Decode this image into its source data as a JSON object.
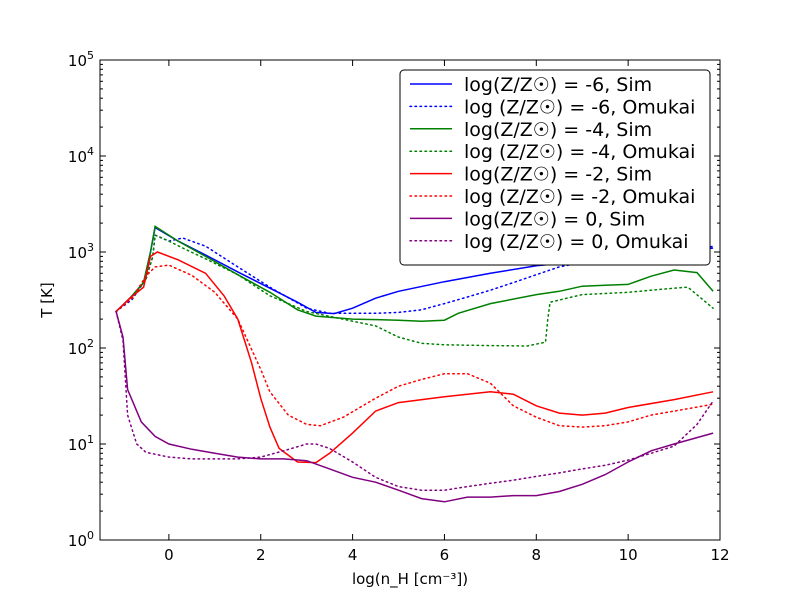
{
  "chart_data": {
    "type": "line",
    "xlabel": "log(n_H [cm⁻³])",
    "ylabel": "T [K]",
    "xlim": [
      -1.5,
      12
    ],
    "ylim_log10": [
      0,
      5
    ],
    "yscale": "log",
    "grid": false,
    "legend_placement": "top-right",
    "x_ticks": [
      0,
      2,
      4,
      6,
      8,
      10,
      12
    ],
    "x_tick_labels": [
      "0",
      "2",
      "4",
      "6",
      "8",
      "10",
      "12"
    ],
    "y_ticks_log10": [
      0,
      1,
      2,
      3,
      4,
      5
    ],
    "y_tick_labels": [
      {
        "base": "10",
        "exp": "0"
      },
      {
        "base": "10",
        "exp": "1"
      },
      {
        "base": "10",
        "exp": "2"
      },
      {
        "base": "10",
        "exp": "3"
      },
      {
        "base": "10",
        "exp": "4"
      },
      {
        "base": "10",
        "exp": "5"
      }
    ],
    "series": [
      {
        "name": "log(Z/Z☉) = -6, Sim",
        "color": "#0000ff",
        "style": "solid",
        "points": [
          [
            -1.15,
            240
          ],
          [
            -0.85,
            330
          ],
          [
            -0.55,
            480
          ],
          [
            -0.4,
            1000
          ],
          [
            -0.3,
            1800
          ],
          [
            0.2,
            1300
          ],
          [
            0.8,
            930
          ],
          [
            1.5,
            620
          ],
          [
            2.2,
            420
          ],
          [
            2.8,
            300
          ],
          [
            3.2,
            235
          ],
          [
            3.6,
            228
          ],
          [
            4.0,
            260
          ],
          [
            4.5,
            330
          ],
          [
            5.0,
            390
          ],
          [
            6.0,
            490
          ],
          [
            7.0,
            600
          ],
          [
            8.0,
            720
          ],
          [
            9.0,
            800
          ],
          [
            10.0,
            870
          ],
          [
            11.0,
            950
          ],
          [
            11.85,
            1100
          ]
        ]
      },
      {
        "name": "log (Z/Z☉) = -6, Omukai",
        "color": "#0000ff",
        "style": "dotted",
        "points": [
          [
            -1.15,
            240
          ],
          [
            -0.8,
            320
          ],
          [
            -0.5,
            520
          ],
          [
            -0.35,
            900
          ],
          [
            -0.3,
            1500
          ],
          [
            0.0,
            1300
          ],
          [
            0.3,
            1400
          ],
          [
            0.8,
            1150
          ],
          [
            1.5,
            700
          ],
          [
            2.2,
            430
          ],
          [
            3.0,
            260
          ],
          [
            3.5,
            230
          ],
          [
            4.0,
            230
          ],
          [
            4.5,
            230
          ],
          [
            5.0,
            235
          ],
          [
            5.5,
            250
          ],
          [
            6.0,
            290
          ],
          [
            6.5,
            340
          ],
          [
            7.0,
            400
          ],
          [
            7.5,
            480
          ],
          [
            8.0,
            580
          ],
          [
            8.5,
            700
          ],
          [
            9.0,
            780
          ],
          [
            9.5,
            810
          ],
          [
            10.0,
            800
          ],
          [
            10.5,
            830
          ],
          [
            11.0,
            930
          ],
          [
            11.5,
            1050
          ],
          [
            11.85,
            1150
          ]
        ]
      },
      {
        "name": "log(Z/Z☉) = -4, Sim",
        "color": "#008000",
        "style": "solid",
        "points": [
          [
            -1.15,
            240
          ],
          [
            -0.85,
            330
          ],
          [
            -0.55,
            480
          ],
          [
            -0.4,
            1000
          ],
          [
            -0.3,
            1850
          ],
          [
            0.2,
            1300
          ],
          [
            0.8,
            900
          ],
          [
            1.5,
            580
          ],
          [
            2.2,
            380
          ],
          [
            2.8,
            250
          ],
          [
            3.2,
            215
          ],
          [
            4.0,
            200
          ],
          [
            5.0,
            195
          ],
          [
            5.5,
            190
          ],
          [
            6.0,
            195
          ],
          [
            6.3,
            230
          ],
          [
            7.0,
            290
          ],
          [
            8.0,
            360
          ],
          [
            8.5,
            390
          ],
          [
            9.0,
            440
          ],
          [
            9.5,
            450
          ],
          [
            10.0,
            460
          ],
          [
            10.5,
            560
          ],
          [
            11.0,
            650
          ],
          [
            11.5,
            610
          ],
          [
            11.85,
            390
          ]
        ]
      },
      {
        "name": "log (Z/Z☉) = -4, Omukai",
        "color": "#008000",
        "style": "dotted",
        "points": [
          [
            -1.15,
            240
          ],
          [
            -0.8,
            330
          ],
          [
            -0.5,
            520
          ],
          [
            -0.35,
            900
          ],
          [
            -0.3,
            1500
          ],
          [
            0.0,
            1300
          ],
          [
            0.3,
            1100
          ],
          [
            0.8,
            850
          ],
          [
            1.5,
            580
          ],
          [
            2.2,
            350
          ],
          [
            3.0,
            240
          ],
          [
            4.0,
            190
          ],
          [
            4.5,
            170
          ],
          [
            5.0,
            130
          ],
          [
            5.5,
            112
          ],
          [
            6.0,
            108
          ],
          [
            7.0,
            106
          ],
          [
            7.8,
            105
          ],
          [
            8.2,
            115
          ],
          [
            8.25,
            200
          ],
          [
            8.3,
            300
          ],
          [
            9.0,
            360
          ],
          [
            10.0,
            380
          ],
          [
            10.5,
            400
          ],
          [
            11.0,
            420
          ],
          [
            11.3,
            430
          ],
          [
            11.85,
            260
          ]
        ]
      },
      {
        "name": "log(Z/Z☉) = -2, Sim",
        "color": "#ff0000",
        "style": "solid",
        "points": [
          [
            -1.15,
            240
          ],
          [
            -0.85,
            330
          ],
          [
            -0.55,
            430
          ],
          [
            -0.4,
            900
          ],
          [
            -0.25,
            1000
          ],
          [
            0.2,
            830
          ],
          [
            0.8,
            600
          ],
          [
            1.2,
            350
          ],
          [
            1.5,
            200
          ],
          [
            1.8,
            70
          ],
          [
            2.0,
            30
          ],
          [
            2.2,
            15
          ],
          [
            2.4,
            9
          ],
          [
            2.8,
            6.5
          ],
          [
            3.2,
            6.4
          ],
          [
            3.5,
            8
          ],
          [
            4.0,
            13
          ],
          [
            4.5,
            22
          ],
          [
            5.0,
            27
          ],
          [
            6.0,
            31
          ],
          [
            7.0,
            35
          ],
          [
            7.5,
            33
          ],
          [
            8.0,
            25
          ],
          [
            8.5,
            21
          ],
          [
            9.0,
            20
          ],
          [
            9.5,
            21
          ],
          [
            10.0,
            24
          ],
          [
            11.0,
            29
          ],
          [
            11.85,
            35
          ]
        ]
      },
      {
        "name": "log (Z/Z☉) = -2, Omukai",
        "color": "#ff0000",
        "style": "dotted",
        "points": [
          [
            -1.15,
            240
          ],
          [
            -0.8,
            330
          ],
          [
            -0.5,
            560
          ],
          [
            -0.3,
            700
          ],
          [
            0.0,
            730
          ],
          [
            0.5,
            570
          ],
          [
            1.0,
            380
          ],
          [
            1.5,
            200
          ],
          [
            2.0,
            60
          ],
          [
            2.2,
            35
          ],
          [
            2.6,
            20
          ],
          [
            3.0,
            16
          ],
          [
            3.3,
            15.5
          ],
          [
            3.8,
            19
          ],
          [
            4.5,
            30
          ],
          [
            5.0,
            40
          ],
          [
            5.5,
            47
          ],
          [
            6.0,
            54
          ],
          [
            6.5,
            54
          ],
          [
            7.0,
            43
          ],
          [
            7.5,
            25
          ],
          [
            8.0,
            19
          ],
          [
            8.5,
            15.5
          ],
          [
            9.0,
            15
          ],
          [
            9.5,
            15.5
          ],
          [
            10.0,
            17
          ],
          [
            10.5,
            20
          ],
          [
            11.0,
            22
          ],
          [
            11.85,
            26
          ]
        ]
      },
      {
        "name": "log(Z/Z☉) = 0, Sim",
        "color": "#800080",
        "style": "solid",
        "points": [
          [
            -1.15,
            240
          ],
          [
            -1.0,
            130
          ],
          [
            -0.9,
            37
          ],
          [
            -0.6,
            17
          ],
          [
            -0.3,
            12
          ],
          [
            0.0,
            10
          ],
          [
            0.5,
            8.8
          ],
          [
            1.0,
            8
          ],
          [
            1.5,
            7.3
          ],
          [
            2.0,
            7
          ],
          [
            2.5,
            7
          ],
          [
            3.0,
            6.7
          ],
          [
            3.5,
            5.5
          ],
          [
            4.0,
            4.5
          ],
          [
            4.5,
            4
          ],
          [
            5.0,
            3.3
          ],
          [
            5.5,
            2.7
          ],
          [
            6.0,
            2.5
          ],
          [
            6.5,
            2.8
          ],
          [
            7.0,
            2.8
          ],
          [
            7.5,
            2.9
          ],
          [
            8.0,
            2.9
          ],
          [
            8.5,
            3.2
          ],
          [
            9.0,
            3.8
          ],
          [
            9.5,
            4.8
          ],
          [
            10.0,
            6.5
          ],
          [
            10.5,
            8.5
          ],
          [
            11.0,
            10
          ],
          [
            11.85,
            13
          ]
        ]
      },
      {
        "name": "log (Z/Z☉) = 0, Omukai",
        "color": "#800080",
        "style": "dotted",
        "points": [
          [
            -1.15,
            240
          ],
          [
            -1.0,
            120
          ],
          [
            -0.9,
            20
          ],
          [
            -0.7,
            10
          ],
          [
            -0.5,
            8.2
          ],
          [
            0.0,
            7.3
          ],
          [
            0.5,
            7
          ],
          [
            1.0,
            7
          ],
          [
            1.5,
            7
          ],
          [
            2.0,
            7.3
          ],
          [
            2.5,
            8.5
          ],
          [
            3.0,
            10
          ],
          [
            3.2,
            10
          ],
          [
            3.5,
            9
          ],
          [
            4.0,
            6.5
          ],
          [
            4.5,
            4.5
          ],
          [
            5.0,
            3.6
          ],
          [
            5.5,
            3.3
          ],
          [
            6.0,
            3.3
          ],
          [
            6.5,
            3.6
          ],
          [
            7.0,
            3.9
          ],
          [
            7.5,
            4.2
          ],
          [
            8.0,
            4.6
          ],
          [
            8.5,
            5
          ],
          [
            9.0,
            5.5
          ],
          [
            9.5,
            6
          ],
          [
            10.0,
            6.8
          ],
          [
            10.5,
            8
          ],
          [
            11.0,
            9.5
          ],
          [
            11.5,
            16
          ],
          [
            11.85,
            28
          ]
        ]
      }
    ]
  }
}
